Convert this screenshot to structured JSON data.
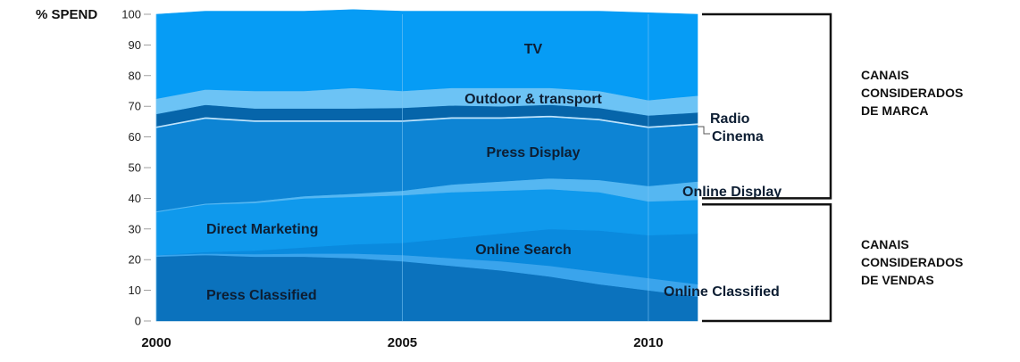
{
  "chart_data": {
    "type": "area",
    "stacked": true,
    "ylabel": "% SPEND",
    "ylim": [
      0,
      100
    ],
    "yticks": [
      "0",
      "10",
      "20",
      "30",
      "40",
      "50",
      "60",
      "70",
      "80",
      "90",
      "100"
    ],
    "xlim": [
      2000,
      2011
    ],
    "xticks": [
      "2000",
      "2005",
      "2010"
    ],
    "x": [
      2000,
      2001,
      2002,
      2003,
      2004,
      2005,
      2006,
      2007,
      2008,
      2009,
      2010,
      2011
    ],
    "series": [
      {
        "name": "Press Classified",
        "color": "#0b72bd",
        "values": [
          21,
          21.5,
          21,
          21,
          20.5,
          19.5,
          18,
          16.5,
          14.5,
          12,
          10,
          8
        ]
      },
      {
        "name": "Online Classified",
        "color": "#3aa4ec",
        "values": [
          0.5,
          0.5,
          0.8,
          1,
          1.5,
          2,
          2.5,
          3,
          3.5,
          4,
          4,
          4
        ]
      },
      {
        "name": "Online Search",
        "color": "#0a8ade",
        "values": [
          0,
          0.5,
          1.2,
          2,
          3,
          4,
          6.5,
          9,
          12,
          13.5,
          14,
          16.5
        ]
      },
      {
        "name": "Direct Marketing",
        "color": "#0f99ec",
        "values": [
          14,
          15.5,
          15.5,
          16,
          15.5,
          15.5,
          15,
          14,
          13,
          12.5,
          11,
          11
        ]
      },
      {
        "name": "Online Display",
        "color": "#55b7f2",
        "values": [
          0.3,
          0.3,
          0.5,
          0.7,
          1,
          1.5,
          2.5,
          3,
          3.5,
          4,
          5,
          6
        ]
      },
      {
        "name": "Press Display",
        "color": "#0d84d4",
        "values": [
          27.2,
          27.7,
          26,
          24.3,
          23.5,
          22.5,
          21.5,
          20.5,
          20,
          19.5,
          19,
          18.5
        ]
      },
      {
        "name": "Cinema",
        "color": "#bfe3fb",
        "values": [
          0.5,
          0.5,
          0.5,
          0.5,
          0.5,
          0.5,
          0.5,
          0.5,
          0.5,
          0.5,
          0.5,
          0.5
        ]
      },
      {
        "name": "Radio",
        "color": "#0665aa",
        "values": [
          4,
          4,
          3.8,
          3.8,
          3.8,
          4,
          3.8,
          3.5,
          3.5,
          3.5,
          3.5,
          3.5
        ]
      },
      {
        "name": "Outdoor & transport",
        "color": "#6cc3f5",
        "values": [
          5,
          5,
          5.7,
          5.7,
          6.7,
          5.5,
          5.7,
          6,
          5.5,
          5.5,
          5,
          5.5
        ]
      },
      {
        "name": "TV",
        "color": "#069cf5",
        "values": [
          27.5,
          25.5,
          26,
          26,
          25.5,
          26,
          25,
          25,
          25,
          26,
          28.5,
          26.5
        ]
      }
    ],
    "band_labels": [
      "TV",
      "Outdoor & transport",
      "Radio",
      "Cinema",
      "Press Display",
      "Online Display",
      "Direct Marketing",
      "Online Search",
      "Press Classified",
      "Online Classified"
    ],
    "group_labels": [
      {
        "lines": [
          "CANAIS",
          "CONSIDERADOS",
          "DE MARCA"
        ],
        "range": [
          40,
          100
        ]
      },
      {
        "lines": [
          "CANAIS",
          "CONSIDERADOS",
          "DE VENDAS"
        ],
        "range": [
          0,
          38
        ]
      }
    ]
  }
}
